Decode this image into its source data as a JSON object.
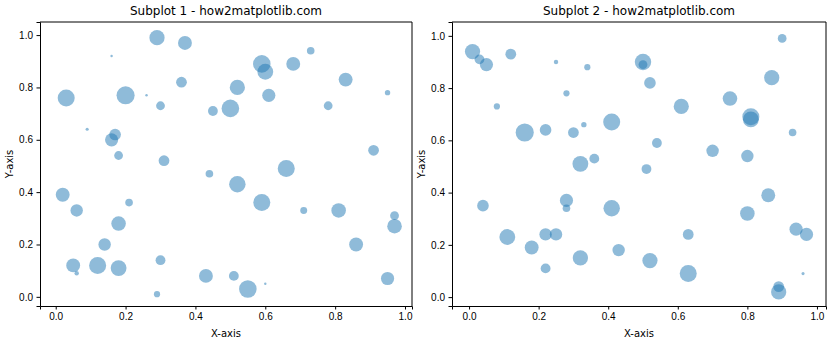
{
  "chart_data": [
    {
      "type": "scatter",
      "title": "Subplot 1 - how2matplotlib.com",
      "x_label": "X-axis",
      "y_label": "Y-axis",
      "color": "#1f77b4",
      "xlim": [
        -0.045,
        1.02
      ],
      "ylim": [
        -0.035,
        1.05
      ],
      "xticks": [
        {
          "value": 0,
          "label": "0.0"
        },
        0.2,
        0.4,
        0.6,
        0.8,
        {
          "value": 1,
          "label": "1.0"
        }
      ],
      "yticks": [
        {
          "value": 0,
          "label": "0.0"
        },
        0.2,
        0.4,
        0.6,
        0.8,
        {
          "value": 1,
          "label": "1.0"
        }
      ],
      "x": [
        0.03,
        0.02,
        0.06,
        0.05,
        0.06,
        0.09,
        0.12,
        0.14,
        0.16,
        0.17,
        0.18,
        0.18,
        0.18,
        0.2,
        0.21,
        0.16,
        0.26,
        0.29,
        0.3,
        0.31,
        0.3,
        0.29,
        0.36,
        0.37,
        0.44,
        0.45,
        0.43,
        0.5,
        0.51,
        0.52,
        0.52,
        0.55,
        0.59,
        0.6,
        0.59,
        0.6,
        0.61,
        0.66,
        0.68,
        0.71,
        0.73,
        0.78,
        0.81,
        0.83,
        0.86,
        0.91,
        0.95,
        0.95,
        0.97,
        0.97
      ],
      "y": [
        0.76,
        0.39,
        0.33,
        0.12,
        0.09,
        0.64,
        0.12,
        0.2,
        0.6,
        0.62,
        0.54,
        0.28,
        0.11,
        0.77,
        0.36,
        0.92,
        0.77,
        0.99,
        0.73,
        0.52,
        0.14,
        0.01,
        0.82,
        0.97,
        0.47,
        0.71,
        0.08,
        0.72,
        0.08,
        0.8,
        0.43,
        0.03,
        0.36,
        0.05,
        0.89,
        0.86,
        0.77,
        0.49,
        0.89,
        0.33,
        0.94,
        0.73,
        0.33,
        0.83,
        0.2,
        0.56,
        0.07,
        0.78,
        0.31,
        0.27
      ],
      "sizes": [
        150,
        100,
        80,
        100,
        10,
        5,
        150,
        80,
        90,
        70,
        40,
        110,
        130,
        170,
        30,
        3,
        3,
        120,
        40,
        60,
        50,
        20,
        60,
        100,
        30,
        50,
        100,
        160,
        50,
        120,
        140,
        160,
        150,
        3,
        160,
        130,
        90,
        150,
        100,
        25,
        30,
        40,
        110,
        100,
        100,
        60,
        90,
        15,
        40,
        110
      ]
    },
    {
      "type": "scatter",
      "title": "Subplot 2 - how2matplotlib.com",
      "x_label": "X-axis",
      "y_label": "Y-axis",
      "color": "#1f77b4",
      "xlim": [
        -0.049,
        1.026
      ],
      "ylim": [
        -0.034,
        1.053
      ],
      "xticks": [
        {
          "value": 0,
          "label": "0.0"
        },
        0.2,
        0.4,
        0.6,
        0.8,
        {
          "value": 1,
          "label": "1.0"
        }
      ],
      "yticks": [
        {
          "value": 0,
          "label": "0.0"
        },
        0.2,
        0.4,
        0.6,
        0.8,
        {
          "value": 1,
          "label": "1.0"
        }
      ],
      "x": [
        0.01,
        0.03,
        0.05,
        0.04,
        0.08,
        0.11,
        0.12,
        0.16,
        0.18,
        0.22,
        0.22,
        0.22,
        0.25,
        0.25,
        0.28,
        0.28,
        0.28,
        0.3,
        0.32,
        0.33,
        0.32,
        0.34,
        0.36,
        0.41,
        0.41,
        0.43,
        0.5,
        0.5,
        0.51,
        0.52,
        0.52,
        0.54,
        0.61,
        0.63,
        0.63,
        0.7,
        0.75,
        0.81,
        0.81,
        0.8,
        0.8,
        0.86,
        0.87,
        0.89,
        0.89,
        0.9,
        0.93,
        0.94,
        0.97,
        0.96
      ],
      "y": [
        0.94,
        0.91,
        0.89,
        0.35,
        0.73,
        0.23,
        0.93,
        0.63,
        0.19,
        0.64,
        0.11,
        0.24,
        0.24,
        0.9,
        0.78,
        0.37,
        0.34,
        0.63,
        0.51,
        0.66,
        0.15,
        0.88,
        0.53,
        0.67,
        0.34,
        0.18,
        0.9,
        0.89,
        0.49,
        0.14,
        0.82,
        0.59,
        0.73,
        0.24,
        0.09,
        0.56,
        0.76,
        0.68,
        0.69,
        0.54,
        0.32,
        0.39,
        0.84,
        0.04,
        0.02,
        0.99,
        0.63,
        0.26,
        0.24,
        0.09
      ],
      "sizes": [
        120,
        50,
        90,
        70,
        20,
        130,
        60,
        170,
        100,
        70,
        50,
        80,
        80,
        10,
        20,
        90,
        30,
        60,
        130,
        15,
        120,
        20,
        50,
        150,
        140,
        80,
        140,
        40,
        50,
        120,
        70,
        50,
        120,
        60,
        150,
        80,
        110,
        130,
        150,
        80,
        110,
        100,
        120,
        60,
        120,
        40,
        30,
        90,
        90,
        5
      ]
    }
  ]
}
